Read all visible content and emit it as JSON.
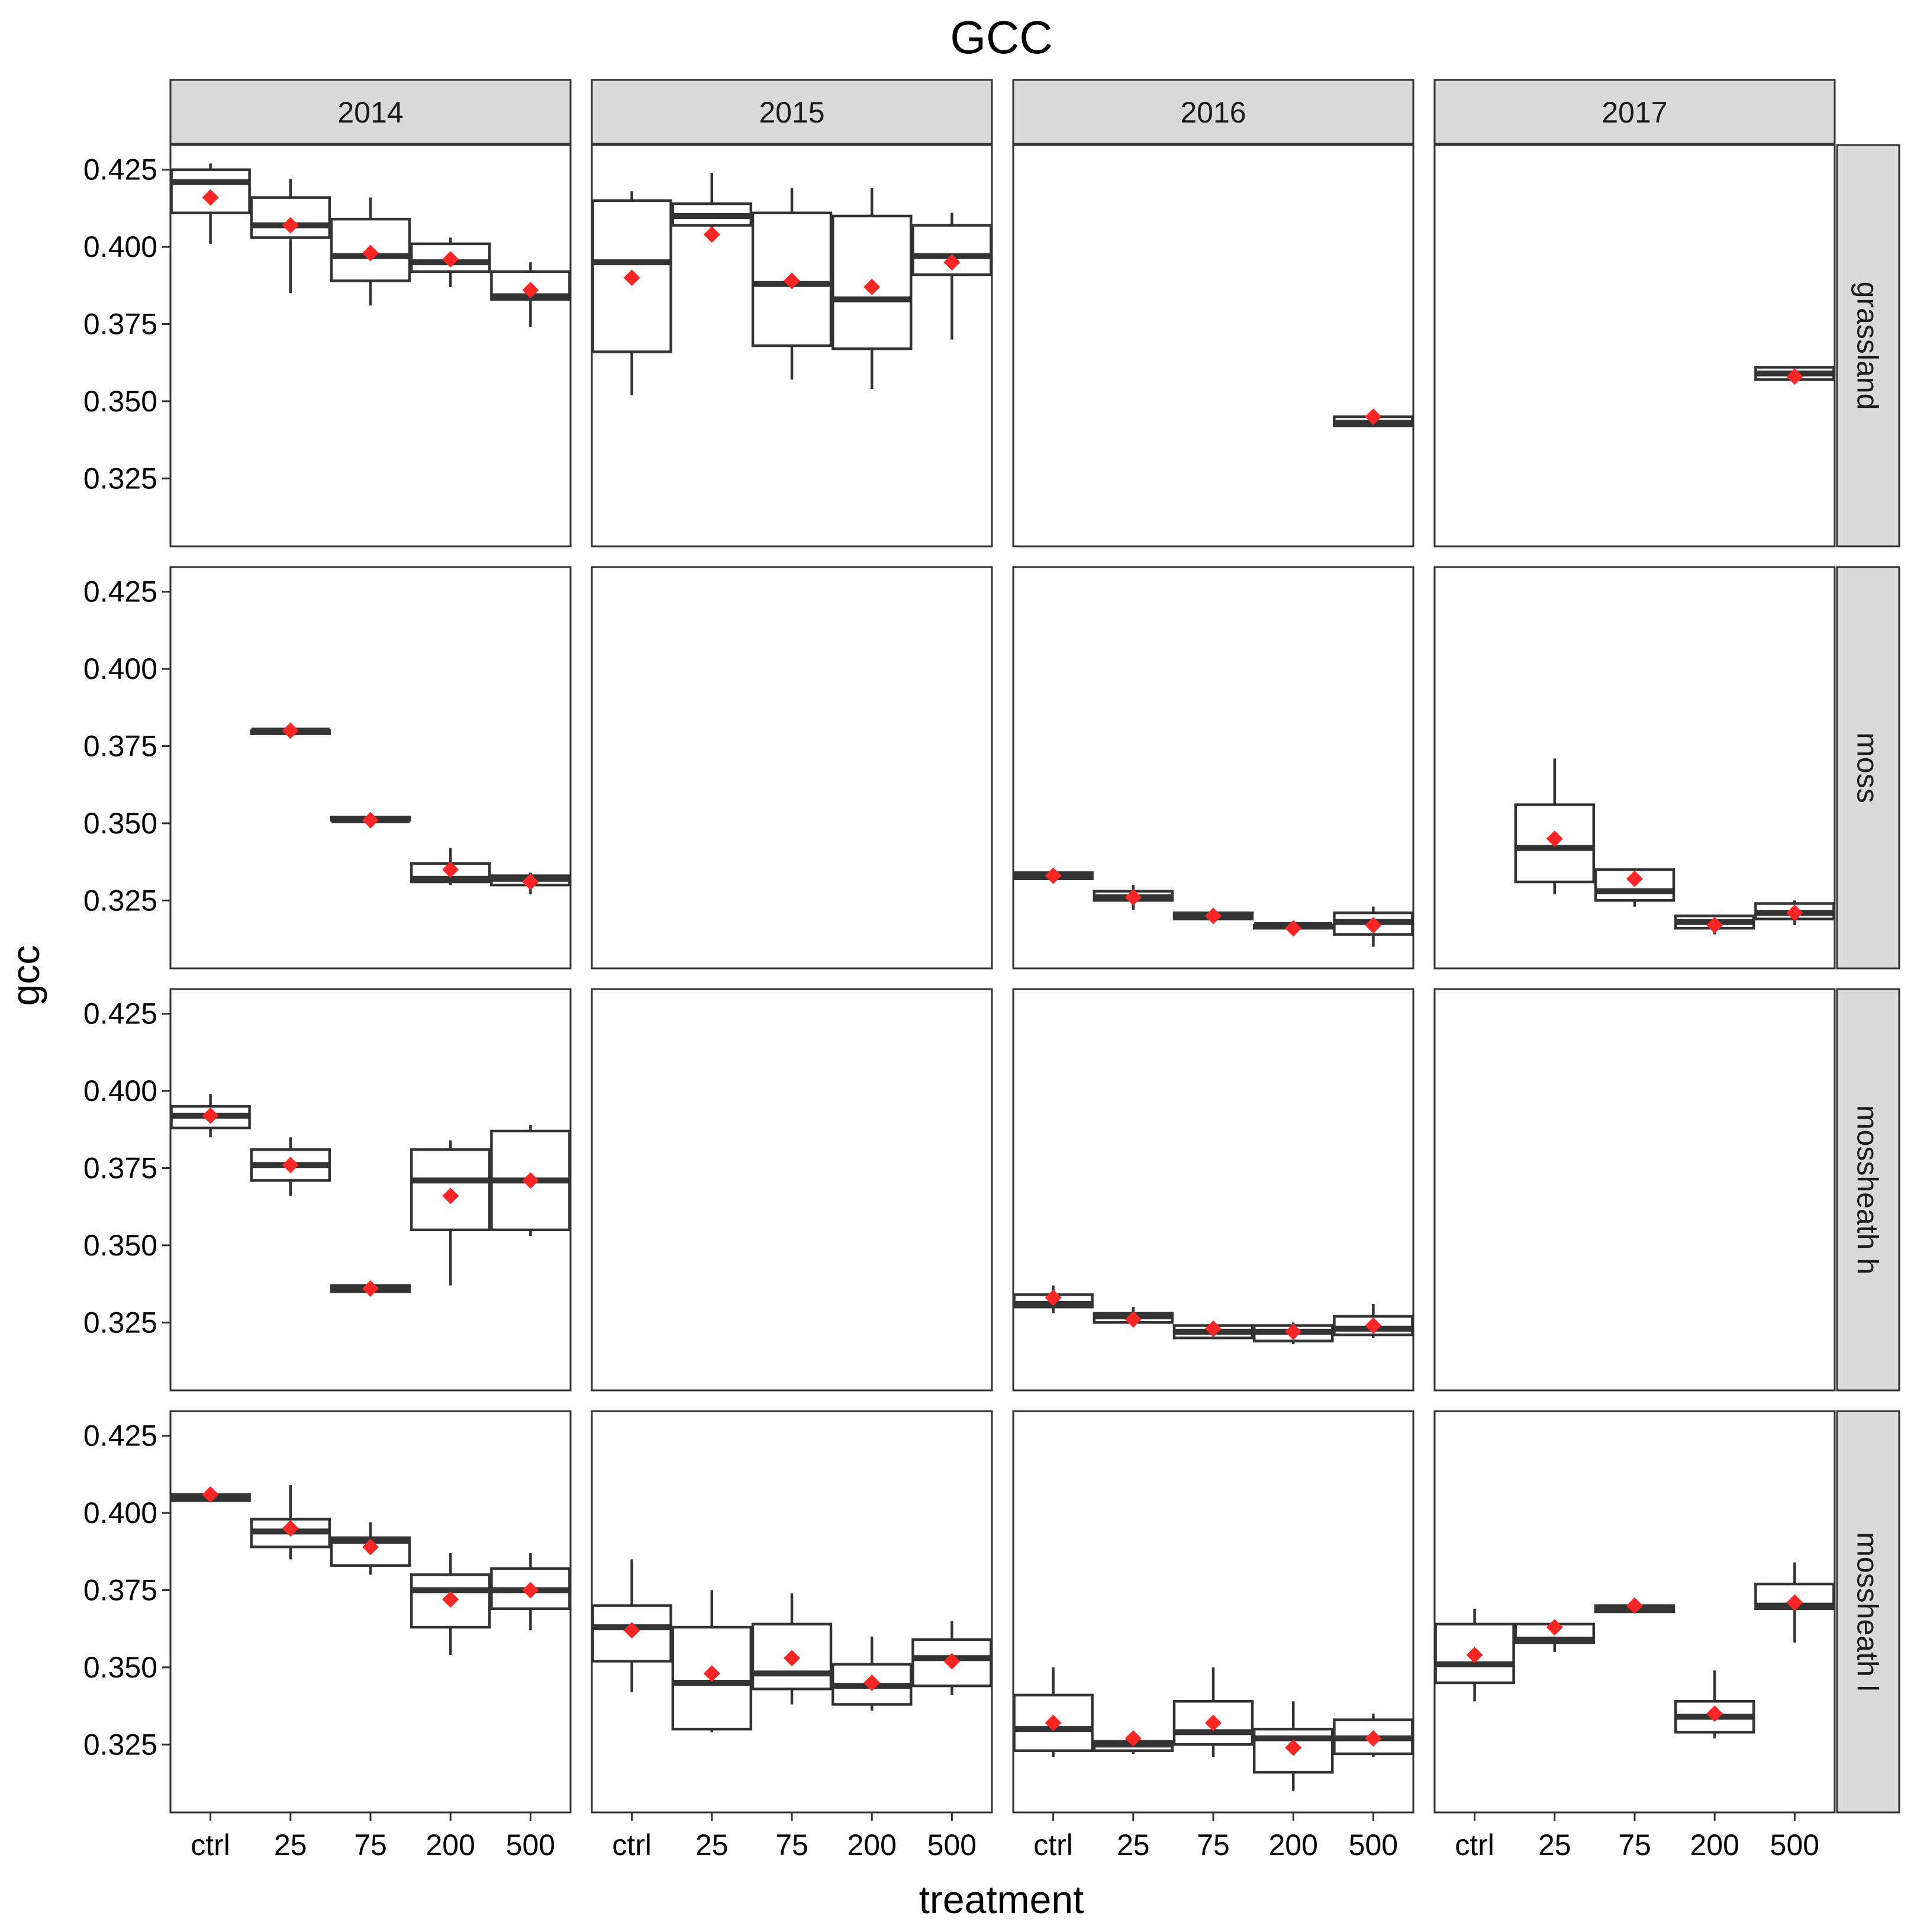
{
  "chart_data": {
    "type": "box",
    "title": "GCC",
    "xlabel": "treatment",
    "ylabel": "gcc",
    "ylim": [
      0.303,
      0.433
    ],
    "yticks": [
      0.325,
      0.35,
      0.375,
      0.4,
      0.425
    ],
    "ytick_labels": [
      "0.325",
      "0.350",
      "0.375",
      "0.400",
      "0.425"
    ],
    "categories": [
      "ctrl",
      "25",
      "75",
      "200",
      "500"
    ],
    "col_facets": [
      "2014",
      "2015",
      "2016",
      "2017"
    ],
    "row_facets": [
      "grassland",
      "moss",
      "mossheath h",
      "mossheath l"
    ],
    "colors": {
      "mean": "#ff2626",
      "box": "#333333",
      "strip": "#d9d9d9"
    },
    "panels": [
      {
        "row": 0,
        "col": 0,
        "boxes": [
          {
            "cat": "ctrl",
            "lw": 0.401,
            "q1": 0.411,
            "med": 0.421,
            "q3": 0.425,
            "uw": 0.427,
            "mean": 0.416
          },
          {
            "cat": "25",
            "lw": 0.385,
            "q1": 0.403,
            "med": 0.407,
            "q3": 0.416,
            "uw": 0.422,
            "mean": 0.407
          },
          {
            "cat": "75",
            "lw": 0.381,
            "q1": 0.389,
            "med": 0.397,
            "q3": 0.409,
            "uw": 0.416,
            "mean": 0.398
          },
          {
            "cat": "200",
            "lw": 0.387,
            "q1": 0.392,
            "med": 0.395,
            "q3": 0.401,
            "uw": 0.403,
            "mean": 0.396
          },
          {
            "cat": "500",
            "lw": 0.374,
            "q1": 0.383,
            "med": 0.384,
            "q3": 0.392,
            "uw": 0.395,
            "mean": 0.386
          }
        ]
      },
      {
        "row": 0,
        "col": 1,
        "boxes": [
          {
            "cat": "ctrl",
            "lw": 0.352,
            "q1": 0.366,
            "med": 0.395,
            "q3": 0.415,
            "uw": 0.418,
            "mean": 0.39
          },
          {
            "cat": "25",
            "lw": 0.404,
            "q1": 0.407,
            "med": 0.41,
            "q3": 0.414,
            "uw": 0.424,
            "mean": 0.404
          },
          {
            "cat": "75",
            "lw": 0.357,
            "q1": 0.368,
            "med": 0.388,
            "q3": 0.411,
            "uw": 0.419,
            "mean": 0.389
          },
          {
            "cat": "200",
            "lw": 0.354,
            "q1": 0.367,
            "med": 0.383,
            "q3": 0.41,
            "uw": 0.419,
            "mean": 0.387
          },
          {
            "cat": "500",
            "lw": 0.37,
            "q1": 0.391,
            "med": 0.397,
            "q3": 0.407,
            "uw": 0.411,
            "mean": 0.395
          }
        ]
      },
      {
        "row": 0,
        "col": 2,
        "boxes": [
          {
            "cat": "500",
            "lw": 0.342,
            "q1": 0.342,
            "med": 0.343,
            "q3": 0.345,
            "uw": 0.346,
            "mean": 0.345
          }
        ]
      },
      {
        "row": 0,
        "col": 3,
        "boxes": [
          {
            "cat": "500",
            "lw": 0.357,
            "q1": 0.357,
            "med": 0.359,
            "q3": 0.361,
            "uw": 0.361,
            "mean": 0.358
          }
        ]
      },
      {
        "row": 1,
        "col": 0,
        "boxes": [
          {
            "cat": "25",
            "lw": 0.379,
            "q1": 0.379,
            "med": 0.38,
            "q3": 0.38,
            "uw": 0.38,
            "mean": 0.38
          },
          {
            "cat": "75",
            "lw": 0.351,
            "q1": 0.351,
            "med": 0.351,
            "q3": 0.352,
            "uw": 0.352,
            "mean": 0.351
          },
          {
            "cat": "200",
            "lw": 0.33,
            "q1": 0.331,
            "med": 0.332,
            "q3": 0.337,
            "uw": 0.342,
            "mean": 0.335
          },
          {
            "cat": "500",
            "lw": 0.327,
            "q1": 0.33,
            "med": 0.332,
            "q3": 0.333,
            "uw": 0.334,
            "mean": 0.331
          }
        ]
      },
      {
        "row": 1,
        "col": 1,
        "boxes": []
      },
      {
        "row": 1,
        "col": 2,
        "boxes": [
          {
            "cat": "ctrl",
            "lw": 0.332,
            "q1": 0.332,
            "med": 0.333,
            "q3": 0.334,
            "uw": 0.335,
            "mean": 0.333
          },
          {
            "cat": "25",
            "lw": 0.322,
            "q1": 0.325,
            "med": 0.326,
            "q3": 0.328,
            "uw": 0.33,
            "mean": 0.326
          },
          {
            "cat": "75",
            "lw": 0.318,
            "q1": 0.319,
            "med": 0.32,
            "q3": 0.321,
            "uw": 0.322,
            "mean": 0.32
          },
          {
            "cat": "200",
            "lw": 0.315,
            "q1": 0.316,
            "med": 0.317,
            "q3": 0.317,
            "uw": 0.318,
            "mean": 0.316
          },
          {
            "cat": "500",
            "lw": 0.31,
            "q1": 0.314,
            "med": 0.318,
            "q3": 0.321,
            "uw": 0.323,
            "mean": 0.317
          }
        ]
      },
      {
        "row": 1,
        "col": 3,
        "boxes": [
          {
            "cat": "25",
            "lw": 0.327,
            "q1": 0.331,
            "med": 0.342,
            "q3": 0.356,
            "uw": 0.371,
            "mean": 0.345
          },
          {
            "cat": "75",
            "lw": 0.323,
            "q1": 0.325,
            "med": 0.328,
            "q3": 0.335,
            "uw": 0.335,
            "mean": 0.332
          },
          {
            "cat": "200",
            "lw": 0.314,
            "q1": 0.316,
            "med": 0.318,
            "q3": 0.32,
            "uw": 0.32,
            "mean": 0.317
          },
          {
            "cat": "500",
            "lw": 0.317,
            "q1": 0.319,
            "med": 0.321,
            "q3": 0.324,
            "uw": 0.325,
            "mean": 0.321
          }
        ]
      },
      {
        "row": 2,
        "col": 0,
        "boxes": [
          {
            "cat": "ctrl",
            "lw": 0.385,
            "q1": 0.388,
            "med": 0.392,
            "q3": 0.395,
            "uw": 0.399,
            "mean": 0.392
          },
          {
            "cat": "25",
            "lw": 0.366,
            "q1": 0.371,
            "med": 0.376,
            "q3": 0.381,
            "uw": 0.385,
            "mean": 0.376
          },
          {
            "cat": "75",
            "lw": 0.335,
            "q1": 0.335,
            "med": 0.336,
            "q3": 0.337,
            "uw": 0.337,
            "mean": 0.336
          },
          {
            "cat": "200",
            "lw": 0.337,
            "q1": 0.355,
            "med": 0.371,
            "q3": 0.381,
            "uw": 0.384,
            "mean": 0.366
          },
          {
            "cat": "500",
            "lw": 0.353,
            "q1": 0.355,
            "med": 0.371,
            "q3": 0.387,
            "uw": 0.389,
            "mean": 0.371
          }
        ]
      },
      {
        "row": 2,
        "col": 1,
        "boxes": []
      },
      {
        "row": 2,
        "col": 2,
        "boxes": [
          {
            "cat": "ctrl",
            "lw": 0.328,
            "q1": 0.33,
            "med": 0.331,
            "q3": 0.334,
            "uw": 0.337,
            "mean": 0.333
          },
          {
            "cat": "25",
            "lw": 0.324,
            "q1": 0.325,
            "med": 0.327,
            "q3": 0.328,
            "uw": 0.33,
            "mean": 0.326
          },
          {
            "cat": "75",
            "lw": 0.32,
            "q1": 0.32,
            "med": 0.322,
            "q3": 0.324,
            "uw": 0.325,
            "mean": 0.323
          },
          {
            "cat": "200",
            "lw": 0.318,
            "q1": 0.319,
            "med": 0.322,
            "q3": 0.324,
            "uw": 0.325,
            "mean": 0.322
          },
          {
            "cat": "500",
            "lw": 0.32,
            "q1": 0.321,
            "med": 0.323,
            "q3": 0.327,
            "uw": 0.331,
            "mean": 0.324
          }
        ]
      },
      {
        "row": 2,
        "col": 3,
        "boxes": []
      },
      {
        "row": 3,
        "col": 0,
        "boxes": [
          {
            "cat": "ctrl",
            "lw": 0.404,
            "q1": 0.404,
            "med": 0.405,
            "q3": 0.406,
            "uw": 0.407,
            "mean": 0.406
          },
          {
            "cat": "25",
            "lw": 0.385,
            "q1": 0.389,
            "med": 0.394,
            "q3": 0.398,
            "uw": 0.409,
            "mean": 0.395
          },
          {
            "cat": "75",
            "lw": 0.38,
            "q1": 0.383,
            "med": 0.391,
            "q3": 0.392,
            "uw": 0.397,
            "mean": 0.389
          },
          {
            "cat": "200",
            "lw": 0.354,
            "q1": 0.363,
            "med": 0.375,
            "q3": 0.38,
            "uw": 0.387,
            "mean": 0.372
          },
          {
            "cat": "500",
            "lw": 0.362,
            "q1": 0.369,
            "med": 0.375,
            "q3": 0.382,
            "uw": 0.387,
            "mean": 0.375
          }
        ]
      },
      {
        "row": 3,
        "col": 1,
        "boxes": [
          {
            "cat": "ctrl",
            "lw": 0.342,
            "q1": 0.352,
            "med": 0.363,
            "q3": 0.37,
            "uw": 0.385,
            "mean": 0.362
          },
          {
            "cat": "25",
            "lw": 0.329,
            "q1": 0.33,
            "med": 0.345,
            "q3": 0.363,
            "uw": 0.375,
            "mean": 0.348
          },
          {
            "cat": "75",
            "lw": 0.338,
            "q1": 0.343,
            "med": 0.348,
            "q3": 0.364,
            "uw": 0.374,
            "mean": 0.353
          },
          {
            "cat": "200",
            "lw": 0.336,
            "q1": 0.338,
            "med": 0.344,
            "q3": 0.351,
            "uw": 0.36,
            "mean": 0.345
          },
          {
            "cat": "500",
            "lw": 0.341,
            "q1": 0.344,
            "med": 0.353,
            "q3": 0.359,
            "uw": 0.365,
            "mean": 0.352
          }
        ]
      },
      {
        "row": 3,
        "col": 2,
        "boxes": [
          {
            "cat": "ctrl",
            "lw": 0.321,
            "q1": 0.323,
            "med": 0.33,
            "q3": 0.341,
            "uw": 0.35,
            "mean": 0.332
          },
          {
            "cat": "25",
            "lw": 0.322,
            "q1": 0.323,
            "med": 0.325,
            "q3": 0.326,
            "uw": 0.327,
            "mean": 0.327
          },
          {
            "cat": "75",
            "lw": 0.321,
            "q1": 0.325,
            "med": 0.329,
            "q3": 0.339,
            "uw": 0.35,
            "mean": 0.332
          },
          {
            "cat": "200",
            "lw": 0.31,
            "q1": 0.316,
            "med": 0.327,
            "q3": 0.33,
            "uw": 0.339,
            "mean": 0.324
          },
          {
            "cat": "500",
            "lw": 0.321,
            "q1": 0.322,
            "med": 0.327,
            "q3": 0.333,
            "uw": 0.335,
            "mean": 0.327
          }
        ]
      },
      {
        "row": 3,
        "col": 3,
        "boxes": [
          {
            "cat": "ctrl",
            "lw": 0.339,
            "q1": 0.345,
            "med": 0.351,
            "q3": 0.364,
            "uw": 0.369,
            "mean": 0.354
          },
          {
            "cat": "25",
            "lw": 0.355,
            "q1": 0.358,
            "med": 0.359,
            "q3": 0.364,
            "uw": 0.364,
            "mean": 0.363
          },
          {
            "cat": "75",
            "lw": 0.368,
            "q1": 0.368,
            "med": 0.369,
            "q3": 0.37,
            "uw": 0.37,
            "mean": 0.37
          },
          {
            "cat": "200",
            "lw": 0.327,
            "q1": 0.329,
            "med": 0.334,
            "q3": 0.339,
            "uw": 0.349,
            "mean": 0.335
          },
          {
            "cat": "500",
            "lw": 0.358,
            "q1": 0.369,
            "med": 0.37,
            "q3": 0.377,
            "uw": 0.384,
            "mean": 0.371
          }
        ]
      }
    ]
  }
}
